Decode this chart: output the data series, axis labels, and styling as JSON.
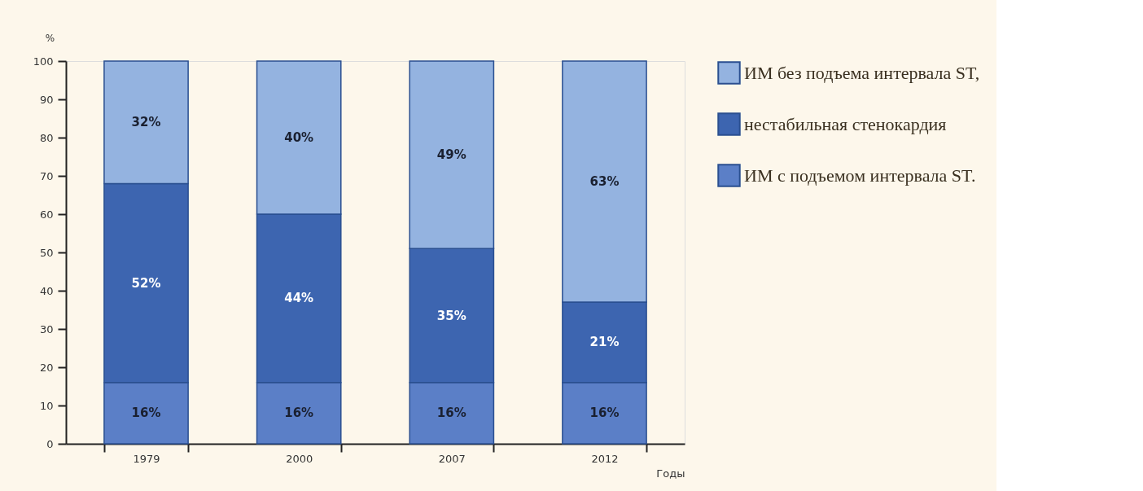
{
  "chart_data": {
    "type": "bar",
    "stacked": true,
    "ylabel": "%",
    "xlabel": "Годы",
    "categories": [
      "1979",
      "2000",
      "2007",
      "2012"
    ],
    "series": [
      {
        "name": "ИМ с подъемом интервала ST.",
        "color": "#5b7fc7",
        "values": [
          16,
          16,
          16,
          16
        ],
        "value_labels": [
          "16%",
          "16%",
          "16%",
          "16%"
        ]
      },
      {
        "name": "нестабильная стенокардия",
        "color": "#3d65b0",
        "values": [
          52,
          44,
          35,
          21
        ],
        "value_labels": [
          "52%",
          "44%",
          "35%",
          "21%"
        ]
      },
      {
        "name": "ИМ без подъема интервала ST,",
        "color": "#94b3e0",
        "values": [
          32,
          40,
          49,
          63
        ],
        "value_labels": [
          "32%",
          "40%",
          "49%",
          "63%"
        ]
      }
    ],
    "ylim": [
      0,
      100
    ],
    "yticks": [
      0,
      10,
      20,
      30,
      40,
      50,
      60,
      70,
      80,
      90,
      100
    ],
    "grid": false,
    "legend": "right"
  }
}
